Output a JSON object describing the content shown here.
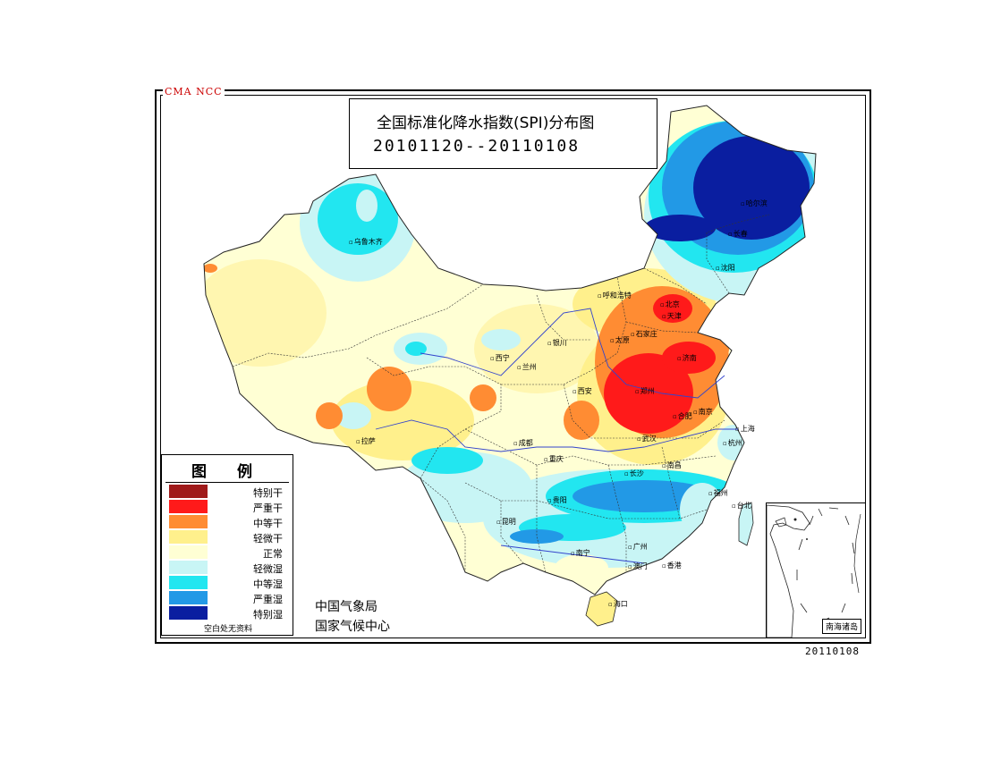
{
  "header": {
    "tag": "CMA NCC",
    "title": "全国标准化降水指数(SPI)分布图",
    "period": "20101120--20110108"
  },
  "legend": {
    "title": "图 例",
    "items": [
      {
        "label": "特别干",
        "color": "#a01a1a"
      },
      {
        "label": "严重干",
        "color": "#ff1a1a"
      },
      {
        "label": "中等干",
        "color": "#ff8c33"
      },
      {
        "label": "轻微干",
        "color": "#fff08c"
      },
      {
        "label": "正常",
        "color": "#ffffd4"
      },
      {
        "label": "轻微湿",
        "color": "#c8f5f5"
      },
      {
        "label": "中等湿",
        "color": "#22e6f0"
      },
      {
        "label": "严重湿",
        "color": "#2299e6"
      },
      {
        "label": "特别湿",
        "color": "#0a1ea0"
      }
    ],
    "note": "空白处无资料"
  },
  "agency": {
    "line1": "中国气象局",
    "line2": "国家气候中心"
  },
  "inset": {
    "label": "南海诸岛"
  },
  "footer": {
    "date": "20110108"
  },
  "cities": [
    {
      "name": "乌鲁木齐"
    },
    {
      "name": "拉萨"
    },
    {
      "name": "西宁"
    },
    {
      "name": "兰州"
    },
    {
      "name": "银川"
    },
    {
      "name": "呼和浩特"
    },
    {
      "name": "北京"
    },
    {
      "name": "天津"
    },
    {
      "name": "太原"
    },
    {
      "name": "石家庄"
    },
    {
      "name": "济南"
    },
    {
      "name": "郑州"
    },
    {
      "name": "西安"
    },
    {
      "name": "合肥"
    },
    {
      "name": "南京"
    },
    {
      "name": "上海"
    },
    {
      "name": "杭州"
    },
    {
      "name": "武汉"
    },
    {
      "name": "成都"
    },
    {
      "name": "重庆"
    },
    {
      "name": "长沙"
    },
    {
      "name": "南昌"
    },
    {
      "name": "福州"
    },
    {
      "name": "贵阳"
    },
    {
      "name": "昆明"
    },
    {
      "name": "南宁"
    },
    {
      "name": "广州"
    },
    {
      "name": "澳门"
    },
    {
      "name": "香港"
    },
    {
      "name": "海口"
    },
    {
      "name": "台北"
    },
    {
      "name": "哈尔滨"
    },
    {
      "name": "长春"
    },
    {
      "name": "沈阳"
    }
  ]
}
